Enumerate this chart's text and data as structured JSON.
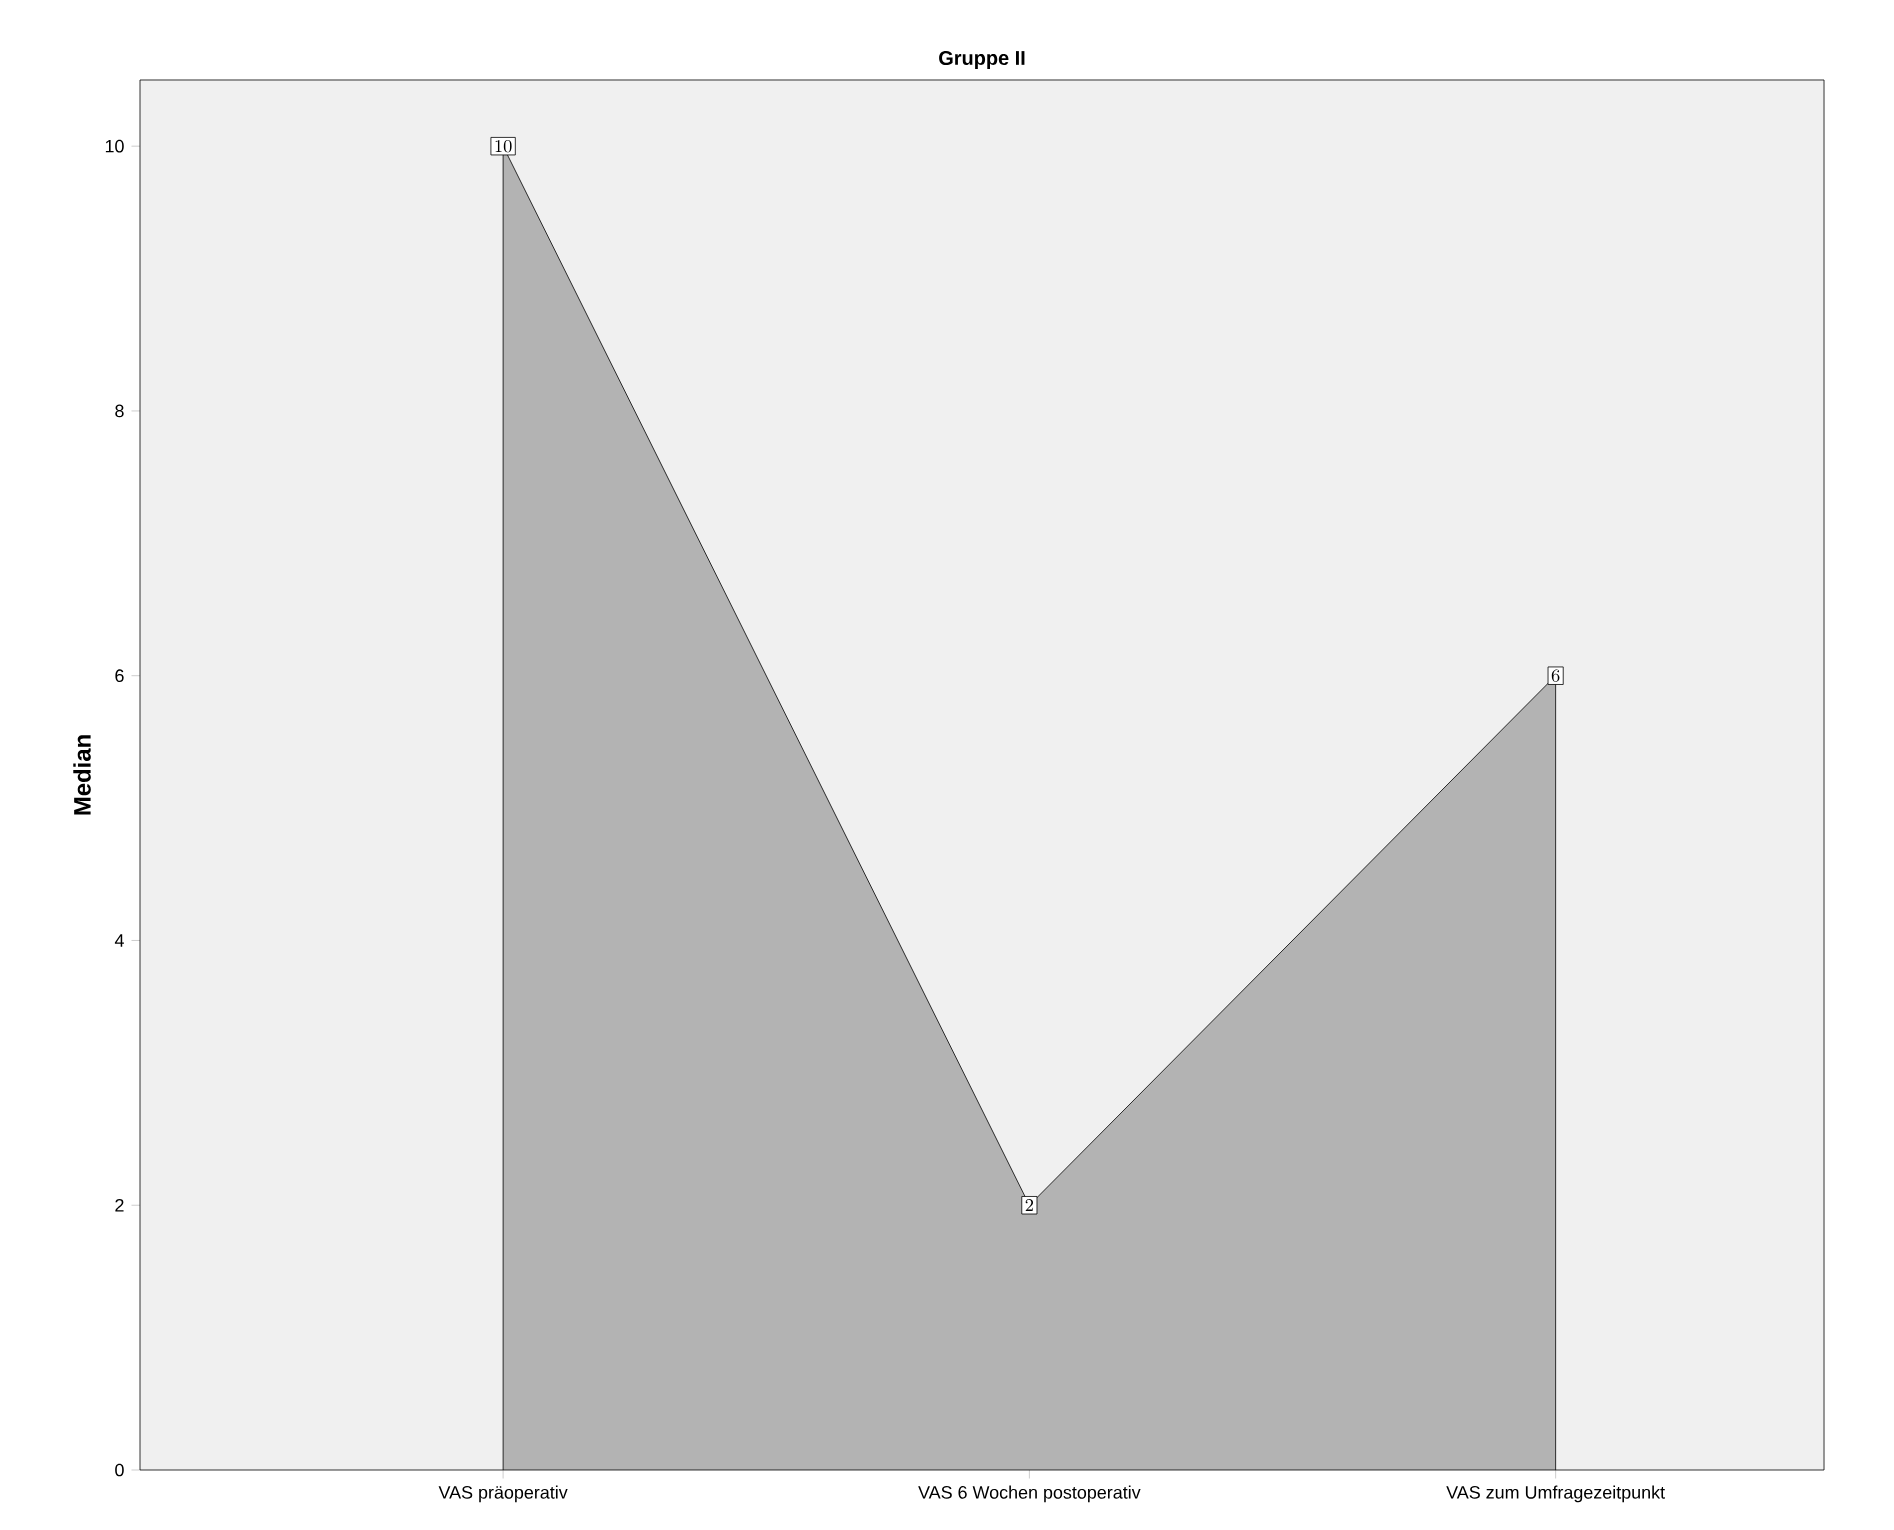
{
  "chart_data": {
    "type": "area",
    "title": "Gruppe II",
    "ylabel": "Median",
    "categories": [
      "VAS präoperativ",
      "VAS 6 Wochen postoperativ",
      "VAS zum Umfragezeitpunkt"
    ],
    "values": [
      10,
      2,
      6
    ],
    "color": "#b3b3b3",
    "ylim": [
      0,
      10.5
    ],
    "yticks": [
      0,
      2,
      4,
      6,
      8,
      10
    ],
    "data_labels": true
  }
}
